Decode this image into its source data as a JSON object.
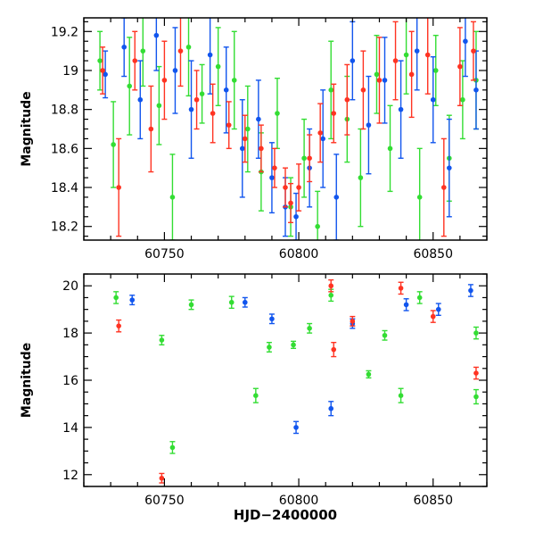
{
  "figure": {
    "xlabel": "HJD−2400000"
  },
  "colors": {
    "green": "#33dd33",
    "blue": "#1155ee",
    "red": "#ff3322"
  },
  "chart_data": [
    {
      "type": "scatter",
      "title": "",
      "xlabel": "",
      "ylabel": "Magnitude",
      "xlim": [
        60720,
        60870
      ],
      "ylim": [
        19.27,
        18.13
      ],
      "y_inverted": true,
      "xticks": [
        60750,
        60800,
        60850
      ],
      "xtick_labels": [
        "60750",
        "60800",
        "60850"
      ],
      "yticks": [
        18.2,
        18.4,
        18.6,
        18.8,
        19,
        19.2
      ],
      "ytick_labels": [
        "18.2",
        "18.4",
        "18.6",
        "18.8",
        "19",
        "19.2"
      ],
      "grid": false,
      "series": [
        {
          "color": "green",
          "points": [
            [
              60726,
              19.05,
              0.15
            ],
            [
              60731,
              18.62,
              0.22
            ],
            [
              60737,
              18.92,
              0.25
            ],
            [
              60742,
              19.1,
              0.18
            ],
            [
              60748,
              18.82,
              0.2
            ],
            [
              60753,
              18.35,
              0.22
            ],
            [
              60759,
              19.12,
              0.25
            ],
            [
              60764,
              18.88,
              0.15
            ],
            [
              60770,
              19.02,
              0.2
            ],
            [
              60776,
              18.95,
              0.25
            ],
            [
              60781,
              18.7,
              0.22
            ],
            [
              60786,
              18.48,
              0.2
            ],
            [
              60792,
              18.78,
              0.18
            ],
            [
              60797,
              18.3,
              0.15
            ],
            [
              60802,
              18.55,
              0.2
            ],
            [
              60807,
              18.2,
              0.18
            ],
            [
              60812,
              18.9,
              0.25
            ],
            [
              60818,
              18.75,
              0.22
            ],
            [
              60823,
              18.45,
              0.25
            ],
            [
              60829,
              18.98,
              0.2
            ],
            [
              60834,
              18.6,
              0.22
            ],
            [
              60840,
              19.08,
              0.2
            ],
            [
              60845,
              18.35,
              0.25
            ],
            [
              60851,
              19.0,
              0.18
            ],
            [
              60856,
              18.55,
              0.22
            ],
            [
              60861,
              18.85,
              0.2
            ],
            [
              60866,
              18.95,
              0.25
            ]
          ]
        },
        {
          "color": "blue",
          "points": [
            [
              60728,
              18.98,
              0.12
            ],
            [
              60735,
              19.12,
              0.15
            ],
            [
              60741,
              18.85,
              0.2
            ],
            [
              60747,
              19.18,
              0.18
            ],
            [
              60754,
              19.0,
              0.22
            ],
            [
              60760,
              18.8,
              0.25
            ],
            [
              60767,
              19.08,
              0.2
            ],
            [
              60773,
              18.9,
              0.22
            ],
            [
              60779,
              18.6,
              0.25
            ],
            [
              60785,
              18.75,
              0.2
            ],
            [
              60790,
              18.45,
              0.18
            ],
            [
              60795,
              18.3,
              0.15
            ],
            [
              60799,
              18.25,
              0.12
            ],
            [
              60804,
              18.5,
              0.2
            ],
            [
              60809,
              18.65,
              0.25
            ],
            [
              60814,
              18.35,
              0.22
            ],
            [
              60820,
              19.05,
              0.2
            ],
            [
              60826,
              18.72,
              0.25
            ],
            [
              60832,
              18.95,
              0.22
            ],
            [
              60838,
              18.8,
              0.25
            ],
            [
              60844,
              19.1,
              0.2
            ],
            [
              60850,
              18.85,
              0.22
            ],
            [
              60856,
              18.5,
              0.25
            ],
            [
              60862,
              19.15,
              0.18
            ],
            [
              60866,
              18.9,
              0.2
            ]
          ]
        },
        {
          "color": "red",
          "points": [
            [
              60727,
              19.0,
              0.12
            ],
            [
              60733,
              18.4,
              0.25
            ],
            [
              60739,
              19.05,
              0.15
            ],
            [
              60745,
              18.7,
              0.22
            ],
            [
              60750,
              18.95,
              0.2
            ],
            [
              60756,
              19.1,
              0.18
            ],
            [
              60762,
              18.85,
              0.15
            ],
            [
              60768,
              18.78,
              0.15
            ],
            [
              60774,
              18.72,
              0.12
            ],
            [
              60780,
              18.65,
              0.12
            ],
            [
              60786,
              18.6,
              0.12
            ],
            [
              60791,
              18.5,
              0.1
            ],
            [
              60795,
              18.4,
              0.1
            ],
            [
              60797,
              18.32,
              0.1
            ],
            [
              60800,
              18.4,
              0.12
            ],
            [
              60804,
              18.55,
              0.12
            ],
            [
              60808,
              18.68,
              0.15
            ],
            [
              60813,
              18.78,
              0.15
            ],
            [
              60818,
              18.85,
              0.18
            ],
            [
              60824,
              18.9,
              0.2
            ],
            [
              60830,
              18.95,
              0.22
            ],
            [
              60836,
              19.05,
              0.2
            ],
            [
              60842,
              18.98,
              0.22
            ],
            [
              60848,
              19.08,
              0.2
            ],
            [
              60854,
              18.4,
              0.25
            ],
            [
              60860,
              19.02,
              0.2
            ],
            [
              60865,
              19.1,
              0.15
            ]
          ]
        }
      ]
    },
    {
      "type": "scatter",
      "title": "",
      "xlabel": "HJD−2400000",
      "ylabel": "Magnitude",
      "xlim": [
        60720,
        60870
      ],
      "ylim": [
        20.5,
        11.5
      ],
      "y_inverted": true,
      "xticks": [
        60750,
        60800,
        60850
      ],
      "xtick_labels": [
        "60750",
        "60800",
        "60850"
      ],
      "yticks": [
        12,
        14,
        16,
        18,
        20
      ],
      "ytick_labels": [
        "12",
        "14",
        "16",
        "18",
        "20"
      ],
      "grid": false,
      "series": [
        {
          "color": "green",
          "points": [
            [
              60753,
              13.15,
              0.25
            ],
            [
              60749,
              17.7,
              0.2
            ],
            [
              60732,
              19.5,
              0.25
            ],
            [
              60784,
              15.35,
              0.3
            ],
            [
              60789,
              17.4,
              0.2
            ],
            [
              60798,
              17.5,
              0.15
            ],
            [
              60804,
              18.2,
              0.2
            ],
            [
              60826,
              16.25,
              0.15
            ],
            [
              60838,
              15.35,
              0.3
            ],
            [
              60866,
              15.3,
              0.3
            ],
            [
              60866,
              18.0,
              0.25
            ],
            [
              60832,
              17.9,
              0.2
            ],
            [
              60845,
              19.5,
              0.25
            ],
            [
              60812,
              19.6,
              0.25
            ],
            [
              60760,
              19.2,
              0.2
            ],
            [
              60775,
              19.3,
              0.25
            ]
          ]
        },
        {
          "color": "blue",
          "points": [
            [
              60799,
              14.0,
              0.25
            ],
            [
              60812,
              14.8,
              0.3
            ],
            [
              60864,
              19.8,
              0.25
            ],
            [
              60790,
              18.6,
              0.2
            ],
            [
              60820,
              18.4,
              0.2
            ],
            [
              60840,
              19.2,
              0.25
            ],
            [
              60780,
              19.3,
              0.2
            ],
            [
              60852,
              19.0,
              0.25
            ],
            [
              60738,
              19.4,
              0.2
            ]
          ]
        },
        {
          "color": "red",
          "points": [
            [
              60749,
              11.85,
              0.2
            ],
            [
              60866,
              16.3,
              0.25
            ],
            [
              60813,
              17.3,
              0.3
            ],
            [
              60733,
              18.3,
              0.25
            ],
            [
              60820,
              18.5,
              0.2
            ],
            [
              60850,
              18.7,
              0.25
            ],
            [
              60812,
              20.0,
              0.25
            ],
            [
              60838,
              19.9,
              0.25
            ]
          ]
        }
      ]
    }
  ]
}
